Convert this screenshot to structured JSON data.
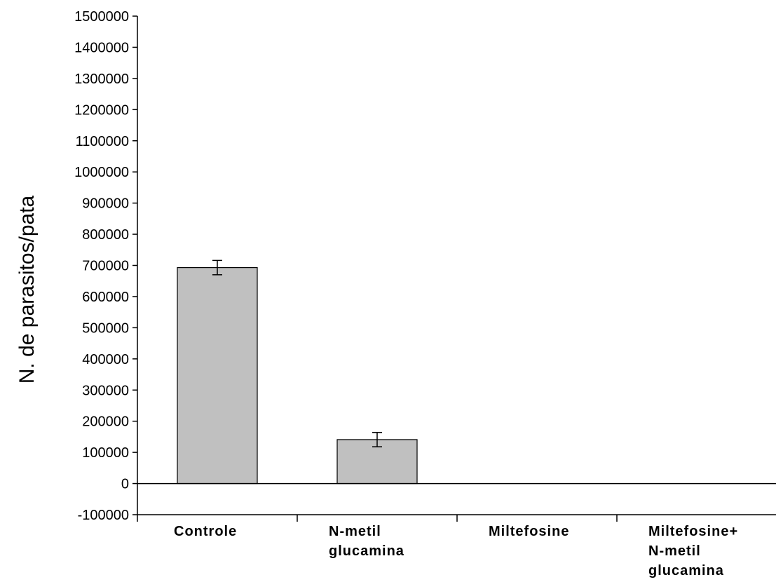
{
  "chart_data": {
    "type": "bar",
    "ylabel": "N. de parasitos/pata",
    "ylim": [
      -100000,
      1500000
    ],
    "ytick_step": 100000,
    "categories": [
      [
        "Controle"
      ],
      [
        "N-metil",
        "glucamina"
      ],
      [
        "Miltefosine"
      ],
      [
        "Miltefosine+",
        "N-metil",
        "glucamina"
      ]
    ],
    "values": [
      693000,
      141000,
      0,
      0
    ],
    "errors": [
      23000,
      23000,
      0,
      0
    ],
    "bar_color": "#c0c0c0",
    "grid": false,
    "legend": "none"
  }
}
